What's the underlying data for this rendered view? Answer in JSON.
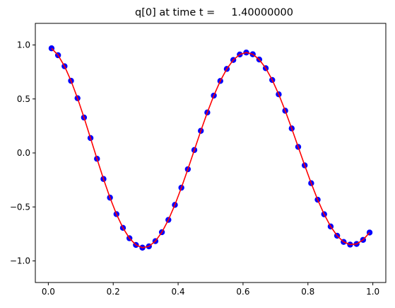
{
  "chart_data": {
    "type": "scatter",
    "title": "q[0] at time t =     1.40000000",
    "xlabel": "",
    "ylabel": "",
    "xlim": [
      -0.04,
      1.04
    ],
    "ylim": [
      -1.2,
      1.2
    ],
    "xticks": [
      0.0,
      0.2,
      0.4,
      0.6,
      0.8,
      1.0
    ],
    "xtick_labels": [
      "0.0",
      "0.2",
      "0.4",
      "0.6",
      "0.8",
      "1.0"
    ],
    "yticks": [
      -1.0,
      -0.5,
      0.0,
      0.5,
      1.0
    ],
    "ytick_labels": [
      "−1.0",
      "−0.5",
      "0.0",
      "0.5",
      "1.0"
    ],
    "grid": false,
    "legend": "none",
    "series": [
      {
        "kind": "points",
        "color": "#0000ff",
        "x": [
          0.01,
          0.03,
          0.05,
          0.07,
          0.09,
          0.11,
          0.13,
          0.15,
          0.17,
          0.19,
          0.21,
          0.23,
          0.25,
          0.27,
          0.29,
          0.31,
          0.33,
          0.35,
          0.37,
          0.39,
          0.41,
          0.43,
          0.45,
          0.47,
          0.49,
          0.51,
          0.53,
          0.55,
          0.57,
          0.59,
          0.61,
          0.63,
          0.65,
          0.67,
          0.69,
          0.71,
          0.73,
          0.75,
          0.77,
          0.79,
          0.81,
          0.83,
          0.85,
          0.87,
          0.89,
          0.91,
          0.93,
          0.95,
          0.97,
          0.99
        ],
        "y": [
          0.969,
          0.905,
          0.803,
          0.668,
          0.507,
          0.328,
          0.138,
          -0.054,
          -0.241,
          -0.414,
          -0.567,
          -0.694,
          -0.79,
          -0.852,
          -0.877,
          -0.865,
          -0.817,
          -0.734,
          -0.62,
          -0.481,
          -0.322,
          -0.151,
          0.027,
          0.205,
          0.375,
          0.531,
          0.667,
          0.778,
          0.861,
          0.912,
          0.93,
          0.914,
          0.865,
          0.785,
          0.676,
          0.543,
          0.391,
          0.227,
          0.056,
          -0.115,
          -0.28,
          -0.433,
          -0.568,
          -0.681,
          -0.767,
          -0.824,
          -0.849,
          -0.843,
          -0.805,
          -0.737
        ]
      },
      {
        "kind": "line",
        "color": "#ff0000",
        "x": [
          0.01,
          0.03,
          0.05,
          0.07,
          0.09,
          0.11,
          0.13,
          0.15,
          0.17,
          0.19,
          0.21,
          0.23,
          0.25,
          0.27,
          0.29,
          0.31,
          0.33,
          0.35,
          0.37,
          0.39,
          0.41,
          0.43,
          0.45,
          0.47,
          0.49,
          0.51,
          0.53,
          0.55,
          0.57,
          0.59,
          0.61,
          0.63,
          0.65,
          0.67,
          0.69,
          0.71,
          0.73,
          0.75,
          0.77,
          0.79,
          0.81,
          0.83,
          0.85,
          0.87,
          0.89,
          0.91,
          0.93,
          0.95,
          0.97,
          0.99
        ],
        "y": [
          0.969,
          0.905,
          0.803,
          0.668,
          0.507,
          0.328,
          0.138,
          -0.054,
          -0.241,
          -0.414,
          -0.567,
          -0.694,
          -0.79,
          -0.852,
          -0.877,
          -0.865,
          -0.817,
          -0.734,
          -0.62,
          -0.481,
          -0.322,
          -0.151,
          0.027,
          0.205,
          0.375,
          0.531,
          0.667,
          0.778,
          0.861,
          0.912,
          0.93,
          0.914,
          0.865,
          0.785,
          0.676,
          0.543,
          0.391,
          0.227,
          0.056,
          -0.115,
          -0.28,
          -0.433,
          -0.568,
          -0.681,
          -0.767,
          -0.824,
          -0.849,
          -0.843,
          -0.805,
          -0.737
        ]
      }
    ]
  }
}
